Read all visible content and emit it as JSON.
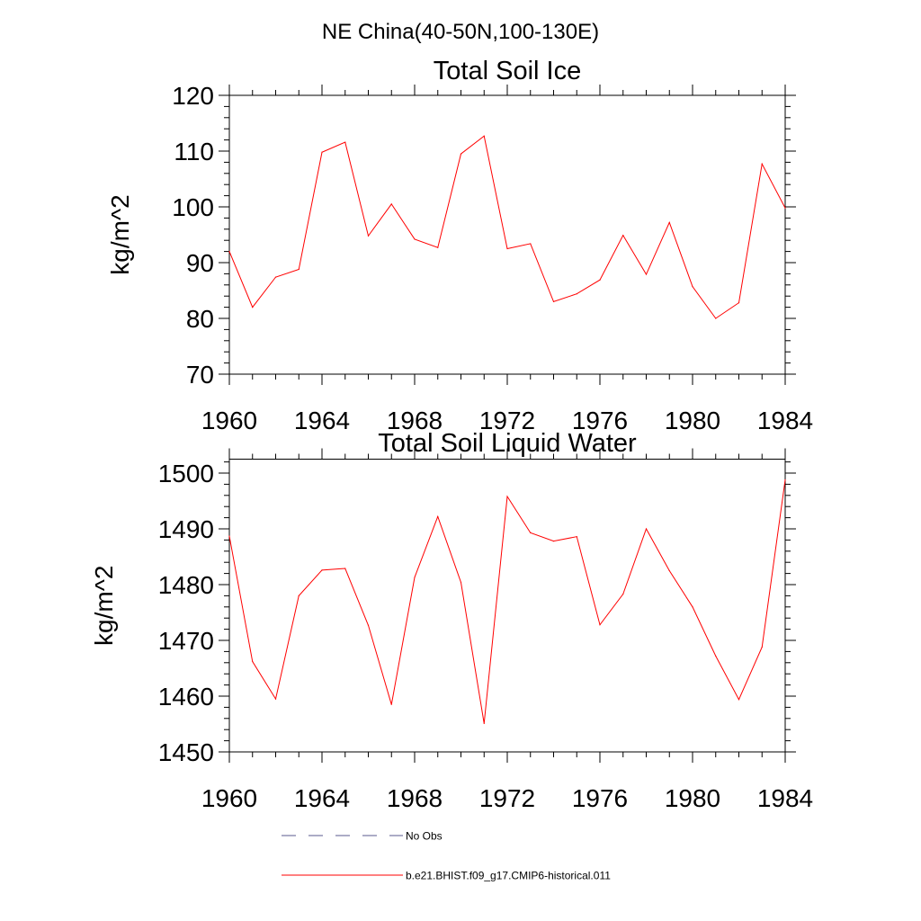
{
  "figure": {
    "title": "NE China(40-50N,100-130E)"
  },
  "legend": {
    "entries": [
      {
        "label": "No Obs",
        "color": "#5a5a8c",
        "style": "dashed"
      },
      {
        "label": "b.e21.BHIST.f09_g17.CMIP6-historical.011",
        "color": "#ff0000",
        "style": "solid"
      }
    ]
  },
  "chart_data": [
    {
      "type": "line",
      "title": "Total Soil Ice",
      "xlabel": "",
      "ylabel": "kg/m^2",
      "xlim": [
        1960,
        1984
      ],
      "ylim": [
        70,
        120
      ],
      "xticks": [
        1960,
        1964,
        1968,
        1972,
        1976,
        1980,
        1984
      ],
      "yticks": [
        70,
        80,
        90,
        100,
        110,
        120
      ],
      "grid": false,
      "series": [
        {
          "name": "b.e21.BHIST.f09_g17.CMIP6-historical.011",
          "color": "#ff0000",
          "x": [
            1960,
            1961,
            1962,
            1963,
            1964,
            1965,
            1966,
            1967,
            1968,
            1969,
            1970,
            1971,
            1972,
            1973,
            1974,
            1975,
            1976,
            1977,
            1978,
            1979,
            1980,
            1981,
            1982,
            1983,
            1984
          ],
          "values": [
            92.0,
            82.0,
            87.4,
            88.8,
            109.8,
            111.6,
            94.8,
            100.5,
            94.2,
            92.7,
            109.5,
            112.7,
            92.5,
            93.4,
            83.0,
            84.4,
            86.9,
            94.9,
            87.9,
            97.2,
            85.7,
            80.0,
            82.8,
            107.7,
            99.8
          ]
        }
      ]
    },
    {
      "type": "line",
      "title": "Total Soil Liquid Water",
      "xlabel": "",
      "ylabel": "kg/m^2",
      "xlim": [
        1960,
        1984
      ],
      "ylim": [
        1450,
        1502.5
      ],
      "xticks": [
        1960,
        1964,
        1968,
        1972,
        1976,
        1980,
        1984
      ],
      "yticks": [
        1450,
        1460,
        1470,
        1480,
        1490,
        1500
      ],
      "grid": false,
      "series": [
        {
          "name": "b.e21.BHIST.f09_g17.CMIP6-historical.011",
          "color": "#ff0000",
          "x": [
            1960,
            1961,
            1962,
            1963,
            1964,
            1965,
            1966,
            1967,
            1968,
            1969,
            1970,
            1971,
            1972,
            1973,
            1974,
            1975,
            1976,
            1977,
            1978,
            1979,
            1980,
            1981,
            1982,
            1983,
            1984
          ],
          "values": [
            1488.7,
            1466.2,
            1459.5,
            1478.0,
            1482.6,
            1482.9,
            1472.7,
            1458.5,
            1481.3,
            1492.2,
            1480.4,
            1455.1,
            1495.8,
            1489.3,
            1487.8,
            1488.6,
            1472.8,
            1478.3,
            1490.0,
            1482.5,
            1476.0,
            1467.2,
            1459.4,
            1468.8,
            1498.8
          ]
        }
      ]
    }
  ]
}
